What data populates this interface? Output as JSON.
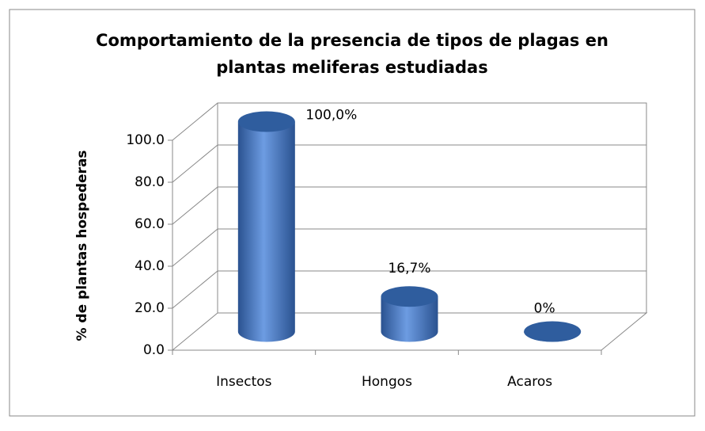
{
  "chart_data": {
    "type": "bar3d",
    "title": [
      "Comportamiento de la presencia de tipos de plagas en",
      "plantas meliferas estudiadas"
    ],
    "y_label": "% de plantas  hospederas",
    "categories": [
      "Insectos",
      "Hongos",
      "Acaros"
    ],
    "values": [
      100,
      16.7,
      0
    ],
    "value_labels": [
      "100,0%",
      "16,7%",
      "0%"
    ],
    "color": "#4f81bd",
    "ylim": [
      0,
      100
    ],
    "yticks": [
      {
        "value": 0,
        "label": "0.0"
      },
      {
        "value": 20,
        "label": "20.0"
      },
      {
        "value": 40,
        "label": "40.0"
      },
      {
        "value": 60,
        "label": "60.0"
      },
      {
        "value": 80,
        "label": "80.0"
      },
      {
        "value": 100,
        "label": "100.0"
      }
    ],
    "grid": true
  }
}
